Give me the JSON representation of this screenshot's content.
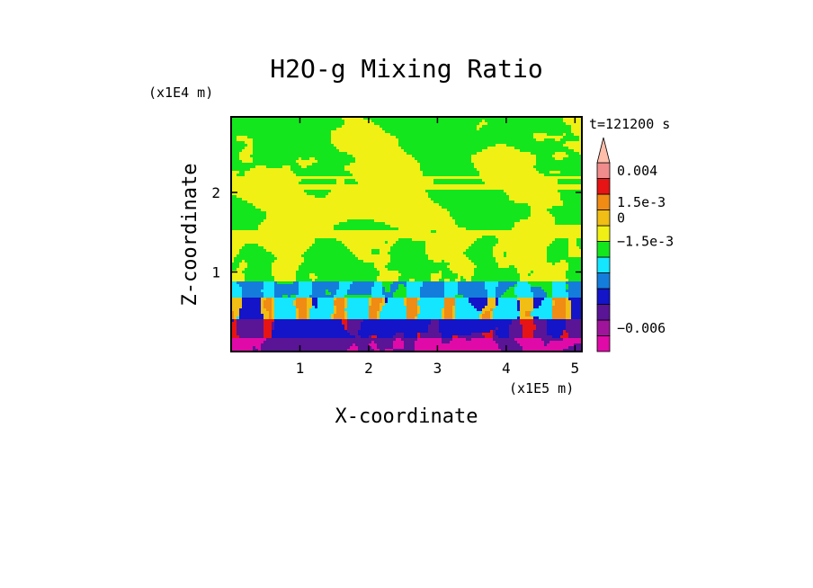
{
  "chart_data": {
    "type": "heatmap",
    "title": "H2O-g Mixing Ratio",
    "xlabel": "X-coordinate",
    "ylabel": "Z-coordinate",
    "x_scale_label": "(x1E5 m)",
    "y_scale_label": "(x1E4 m)",
    "time_label": "t=121200 s",
    "x_ticks": [
      {
        "value": 1,
        "label": "1"
      },
      {
        "value": 2,
        "label": "2"
      },
      {
        "value": 3,
        "label": "3"
      },
      {
        "value": 4,
        "label": "4"
      },
      {
        "value": 5,
        "label": "5"
      }
    ],
    "y_ticks": [
      {
        "value": 1,
        "label": "1"
      },
      {
        "value": 2,
        "label": "2"
      }
    ],
    "xlim": [
      0,
      5.1
    ],
    "ylim": [
      0,
      2.95
    ],
    "colorbar": {
      "levels": [
        "#e00aa8",
        "#a0149b",
        "#5a1496",
        "#1414c8",
        "#147ddc",
        "#14e6ff",
        "#14e61e",
        "#f0f014",
        "#f0be14",
        "#f08c14",
        "#e61414",
        "#f08c8c",
        "#ffbeaa"
      ],
      "labels": [
        {
          "text": "0.004",
          "level": 11.5
        },
        {
          "text": "1.5e-3",
          "level": 9.5
        },
        {
          "text": "0",
          "level": 8.5
        },
        {
          "text": "−1.5e-3",
          "level": 7.0
        },
        {
          "text": "−0.006",
          "level": 1.5
        }
      ]
    }
  }
}
